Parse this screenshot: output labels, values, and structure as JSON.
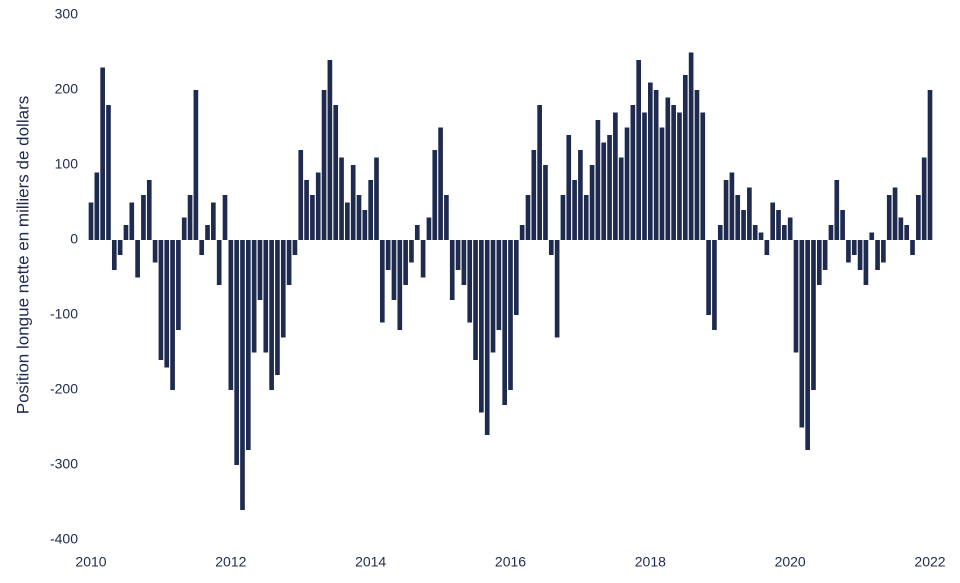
{
  "chart_data": {
    "type": "bar",
    "y_label": "Position longue nette en milliers de dollars",
    "categories": [
      "2010",
      null,
      null,
      null,
      null,
      null,
      null,
      null,
      null,
      null,
      null,
      null,
      null,
      null,
      null,
      null,
      null,
      null,
      null,
      null,
      null,
      null,
      null,
      null,
      "2012",
      null,
      null,
      null,
      null,
      null,
      null,
      null,
      null,
      null,
      null,
      null,
      null,
      null,
      null,
      null,
      null,
      null,
      null,
      null,
      null,
      null,
      null,
      null,
      "2014",
      null,
      null,
      null,
      null,
      null,
      null,
      null,
      null,
      null,
      null,
      null,
      null,
      null,
      null,
      null,
      null,
      null,
      null,
      null,
      null,
      null,
      null,
      null,
      "2016",
      null,
      null,
      null,
      null,
      null,
      null,
      null,
      null,
      null,
      null,
      null,
      null,
      null,
      null,
      null,
      null,
      null,
      null,
      null,
      null,
      null,
      null,
      null,
      "2018",
      null,
      null,
      null,
      null,
      null,
      null,
      null,
      null,
      null,
      null,
      null,
      null,
      null,
      null,
      null,
      null,
      null,
      null,
      null,
      null,
      null,
      null,
      null,
      "2020",
      null,
      null,
      null,
      null,
      null,
      null,
      null,
      null,
      null,
      null,
      null,
      null,
      null,
      null,
      null,
      null,
      null,
      null,
      null,
      null,
      null,
      null,
      null,
      "2022"
    ],
    "values": [
      50,
      90,
      230,
      180,
      -40,
      -20,
      20,
      50,
      -50,
      60,
      80,
      -30,
      -160,
      -170,
      -200,
      -120,
      30,
      60,
      200,
      -20,
      20,
      50,
      -60,
      60,
      -200,
      -300,
      -360,
      -280,
      -150,
      -80,
      -150,
      -200,
      -180,
      -130,
      -60,
      -20,
      120,
      80,
      60,
      90,
      200,
      240,
      180,
      110,
      50,
      100,
      60,
      40,
      80,
      110,
      -110,
      -40,
      -80,
      -120,
      -60,
      -30,
      20,
      -50,
      30,
      120,
      150,
      60,
      -80,
      -40,
      -60,
      -110,
      -160,
      -230,
      -260,
      -150,
      -120,
      -220,
      -200,
      -100,
      20,
      60,
      120,
      180,
      100,
      -20,
      -130,
      60,
      140,
      80,
      120,
      60,
      100,
      160,
      130,
      140,
      170,
      110,
      150,
      180,
      240,
      170,
      210,
      200,
      150,
      190,
      180,
      170,
      220,
      250,
      200,
      170,
      -100,
      -120,
      20,
      80,
      90,
      60,
      40,
      70,
      20,
      10,
      -20,
      50,
      40,
      20,
      30,
      -150,
      -250,
      -280,
      -200,
      -60,
      -40,
      20,
      80,
      40,
      -30,
      -20,
      -40,
      -60,
      10,
      -40,
      -30,
      60,
      70,
      30,
      20,
      -20,
      60,
      110,
      200
    ],
    "color": "#1f2a4f",
    "ylim": [
      -400,
      300
    ],
    "yticks": [
      -400,
      -300,
      -200,
      -100,
      0,
      100,
      200,
      300
    ]
  }
}
